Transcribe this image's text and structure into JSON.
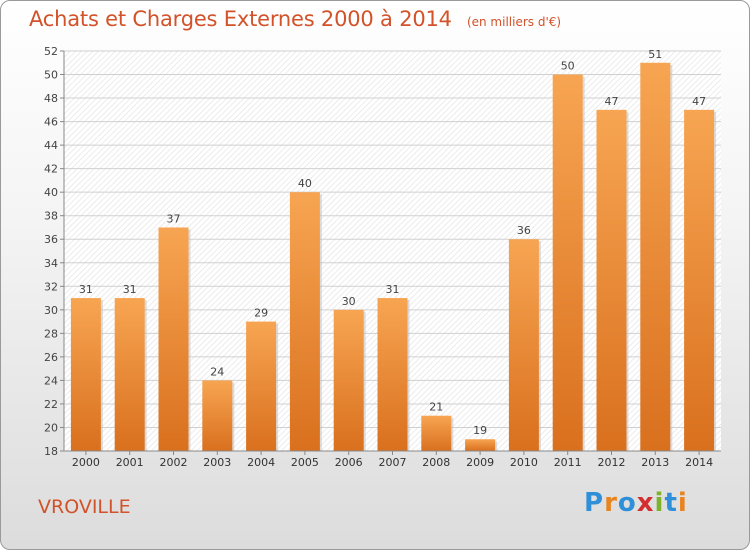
{
  "header": {
    "title": "Achats et Charges Externes 2000 à 2014",
    "subtitle": "(en milliers d'€)"
  },
  "footer": {
    "commune": "VROVILLE",
    "logo_text": "Proxiti"
  },
  "colors": {
    "title": "#d2522a",
    "bar_light": "#f7a552",
    "bar_dark": "#d9701e",
    "logo_letters": [
      "#2f8fd8",
      "#e8841f",
      "#2f8fd8",
      "#d32f2f",
      "#7cb32a",
      "#2f8fd8",
      "#e8841f"
    ]
  },
  "chart_data": {
    "type": "bar",
    "title": "Achats et Charges Externes 2000 à 2014",
    "subtitle": "(en milliers d'€)",
    "categories": [
      "2000",
      "2001",
      "2002",
      "2003",
      "2004",
      "2005",
      "2006",
      "2007",
      "2008",
      "2009",
      "2010",
      "2011",
      "2012",
      "2013",
      "2014"
    ],
    "values": [
      31,
      31,
      37,
      24,
      29,
      40,
      30,
      31,
      21,
      19,
      36,
      50,
      47,
      51,
      47
    ],
    "ylim": [
      18,
      52
    ],
    "yticks": [
      18,
      20,
      22,
      24,
      26,
      28,
      30,
      32,
      34,
      36,
      38,
      40,
      42,
      44,
      46,
      48,
      50,
      52
    ],
    "grid": true,
    "legend": "none"
  }
}
